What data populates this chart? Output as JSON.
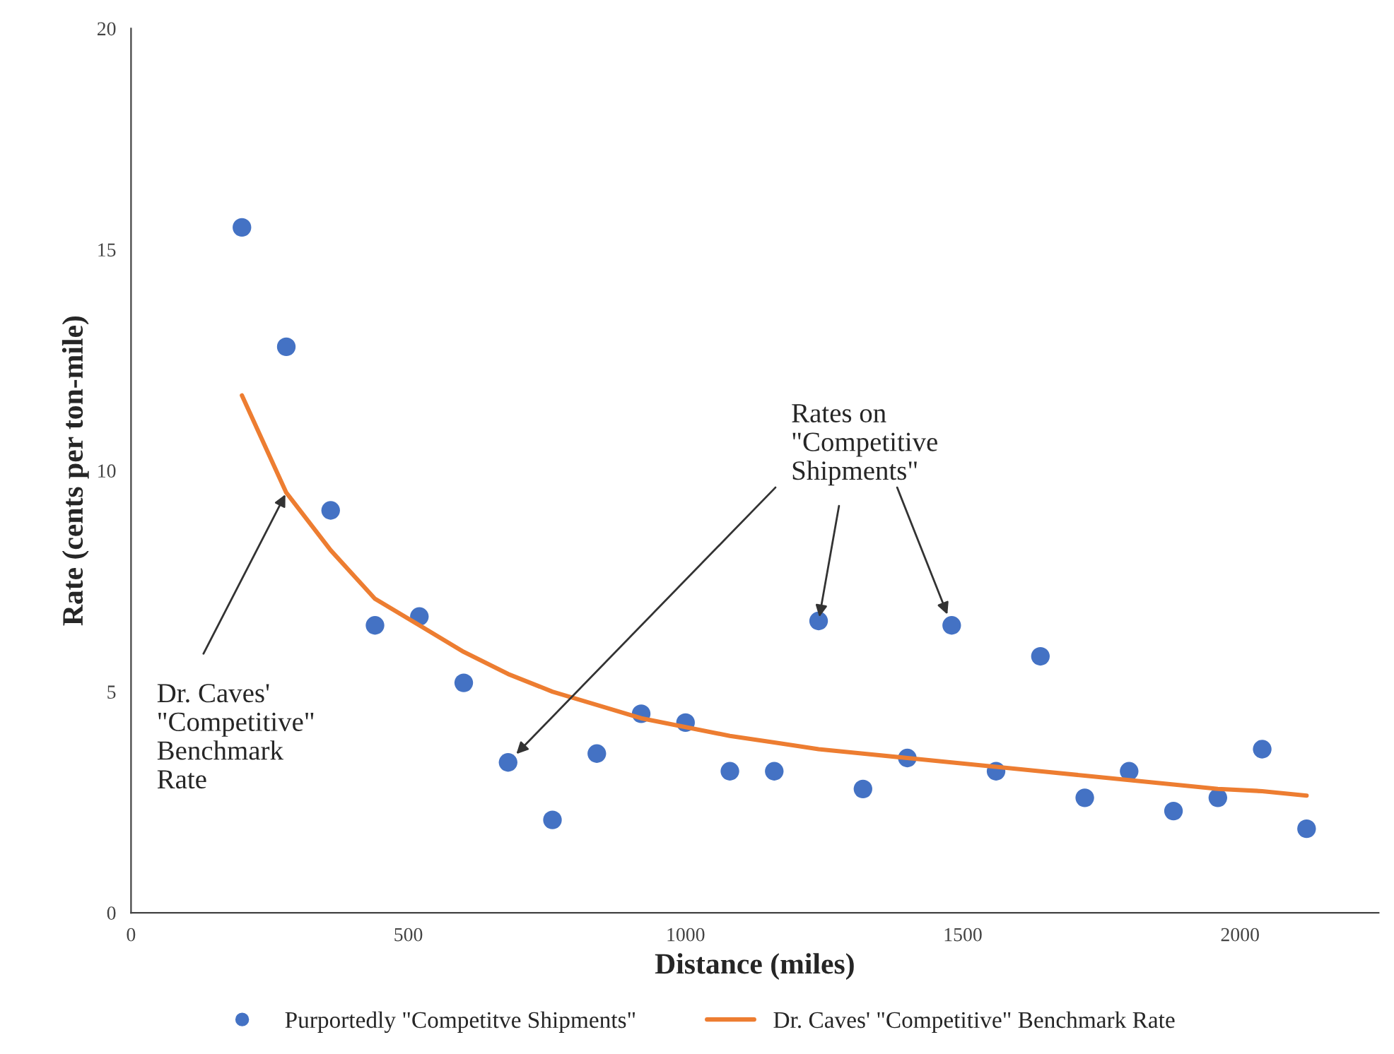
{
  "chart_data": {
    "type": "scatter",
    "xlabel": "Distance (miles)",
    "ylabel": "Rate (cents per ton-mile)",
    "xlim": [
      0,
      2250
    ],
    "xticks": [
      0,
      500,
      1000,
      1500,
      2000
    ],
    "ylim": [
      0,
      20
    ],
    "yticks": [
      0,
      5,
      10,
      15,
      20
    ],
    "grid": false,
    "legend": "bottom",
    "series": [
      {
        "name": "Purportedly \"Competitve Shipments\"",
        "marker": "circle",
        "color": "#4472c4",
        "x": [
          200,
          280,
          360,
          440,
          520,
          600,
          680,
          760,
          840,
          920,
          1000,
          1080,
          1160,
          1240,
          1320,
          1400,
          1480,
          1560,
          1640,
          1720,
          1800,
          1880,
          1960,
          2040,
          2120
        ],
        "values": [
          15.5,
          12.8,
          9.1,
          6.5,
          6.7,
          5.2,
          3.4,
          2.1,
          3.6,
          4.5,
          4.3,
          3.2,
          3.2,
          6.6,
          2.8,
          3.5,
          6.5,
          3.2,
          5.8,
          2.6,
          3.2,
          2.3,
          2.6,
          3.7,
          1.9
        ]
      },
      {
        "name": "Dr. Caves' \"Competitive\" Benchmark Rate",
        "type": "line",
        "color": "#ed7d31",
        "line_style": "solid",
        "x": [
          200,
          280,
          360,
          440,
          520,
          600,
          680,
          760,
          840,
          920,
          1000,
          1080,
          1160,
          1240,
          1320,
          1400,
          1480,
          1560,
          1640,
          1720,
          1800,
          1880,
          1960,
          2040,
          2120
        ],
        "values": [
          11.7,
          9.5,
          8.2,
          7.1,
          6.5,
          5.9,
          5.4,
          5.0,
          4.7,
          4.4,
          4.2,
          4.0,
          3.85,
          3.7,
          3.6,
          3.5,
          3.4,
          3.3,
          3.2,
          3.1,
          3.0,
          2.9,
          2.8,
          2.75,
          2.65
        ]
      }
    ],
    "annotations": [
      {
        "text": "Dr. Caves'\n\"Competitive\"\nBenchmark\nRate",
        "x": 280,
        "y": 9.5
      },
      {
        "text": "Rates on\n\"Competitive\nShipments\"",
        "x": 1240,
        "y": 6.6
      }
    ]
  }
}
